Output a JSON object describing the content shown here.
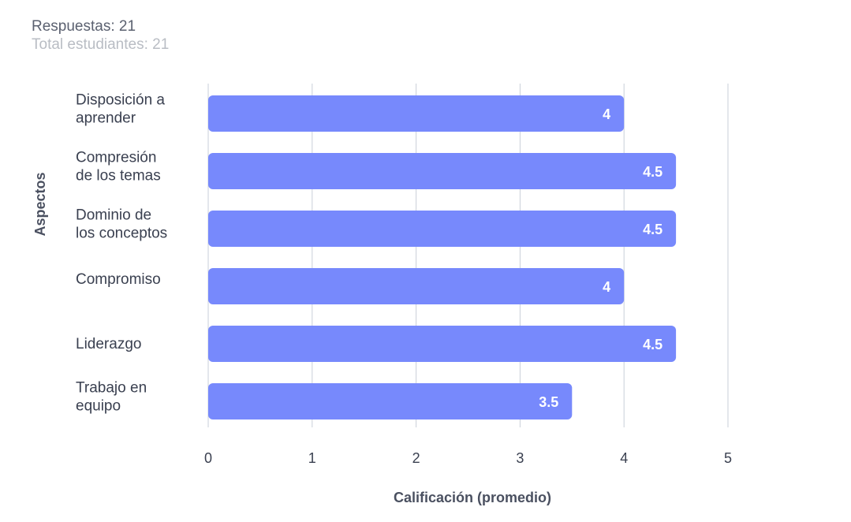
{
  "header": {
    "responses": "Respuestas: 21",
    "total_students": "Total estudiantes: 21"
  },
  "colors": {
    "bar": "#7789fc",
    "grid": "#c9cfd8"
  },
  "chart_data": {
    "type": "bar",
    "orientation": "horizontal",
    "categories": [
      [
        "Disposición a",
        "aprender"
      ],
      [
        "Compresión",
        "de los temas"
      ],
      [
        "Dominio de",
        "los conceptos"
      ],
      [
        "Compromiso"
      ],
      [
        "Liderazgo"
      ],
      [
        "Trabajo en",
        "equipo"
      ]
    ],
    "values": [
      4,
      4.5,
      4.5,
      4,
      4.5,
      3.5
    ],
    "value_labels": [
      "4",
      "4.5",
      "4.5",
      "4",
      "4.5",
      "3.5"
    ],
    "xticks": [
      "0",
      "1",
      "2",
      "3",
      "4",
      "5"
    ],
    "xlim": [
      0,
      5
    ],
    "xlabel": "Calificación (promedio)",
    "ylabel": "Aspectos",
    "grid": "vertical"
  }
}
